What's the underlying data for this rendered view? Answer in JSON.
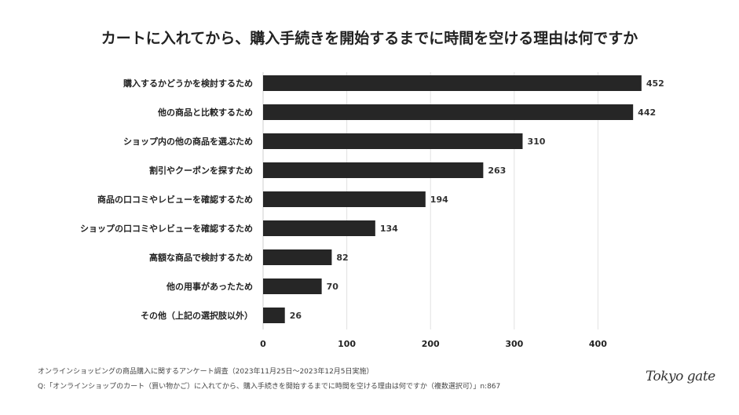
{
  "chart_data": {
    "type": "bar",
    "orientation": "horizontal",
    "title": "カートに入れてから、購入手続きを開始するまでに時間を空ける理由は何ですか",
    "categories": [
      "購入するかどうかを検討するため",
      "他の商品と比較するため",
      "ショップ内の他の商品を選ぶため",
      "割引やクーポンを探すため",
      "商品の口コミやレビューを確認するため",
      "ショップの口コミやレビューを確認するため",
      "高額な商品で検討するため",
      "他の用事があったため",
      "その他（上記の選択肢以外）"
    ],
    "values": [
      452,
      442,
      310,
      263,
      194,
      134,
      82,
      70,
      26
    ],
    "xticks": [
      0,
      100,
      200,
      300,
      400
    ],
    "xlim": [
      0,
      452
    ],
    "grid": true,
    "bar_color": "#262626",
    "xlabel": "",
    "ylabel": ""
  },
  "footer": {
    "line1": "オンラインショッピングの商品購入に関するアンケート調査（2023年11月25日〜2023年12月5日実施）",
    "line2": "Q:「オンラインショップのカート（買い物かご）に入れてから、購入手続きを開始するまでに時間を空ける理由は何ですか（複数選択可）」n:867"
  },
  "logo": "Tokyo gate"
}
